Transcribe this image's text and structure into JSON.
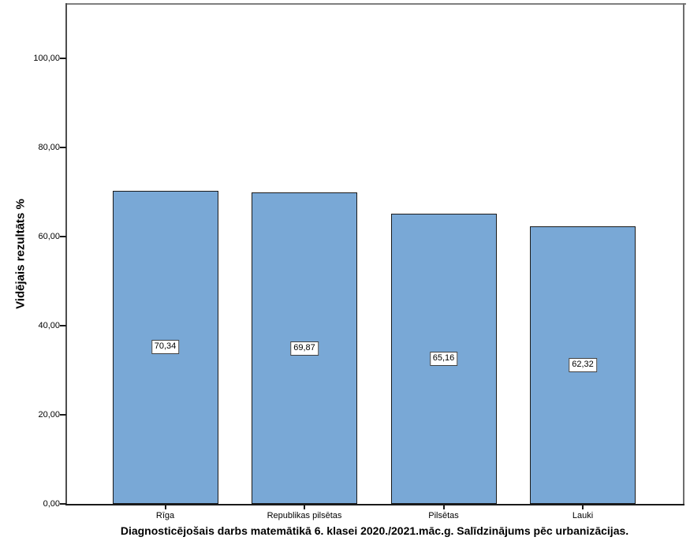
{
  "chart_data": {
    "type": "bar",
    "title": "Diagnosticējošais darbs matemātikā 6. klasei 2020./2021.māc.g. Salīdzinājums pēc urbanizācijas.",
    "ylabel": "Vidējais rezultāts %",
    "xlabel": "",
    "categories": [
      "Rīga",
      "Republikas pilsētas",
      "Pilsētas",
      "Lauki"
    ],
    "values": [
      70.34,
      69.87,
      65.16,
      62.32
    ],
    "value_labels": [
      "70,34",
      "69,87",
      "65,16",
      "62,32"
    ],
    "y_ticks": [
      {
        "value": 0,
        "label": "0,00"
      },
      {
        "value": 20,
        "label": "20,00"
      },
      {
        "value": 40,
        "label": "40,00"
      },
      {
        "value": 60,
        "label": "60,00"
      },
      {
        "value": 80,
        "label": "80,00"
      },
      {
        "value": 100,
        "label": "100,00"
      }
    ],
    "ylim": [
      0,
      112.4
    ],
    "grid": false,
    "legend": "none",
    "colors": {
      "bar_fill": "#79A8D6",
      "bar_border": "#1A1A1A",
      "axis_line": "#1A1A1A",
      "frame_top": "#7F7F7F",
      "frame_left": "#4D4D4D",
      "frame_right": "#6E6E6E",
      "value_box_bg": "#FFFFFF",
      "value_box_border": "#404040",
      "text": "#000000"
    }
  }
}
